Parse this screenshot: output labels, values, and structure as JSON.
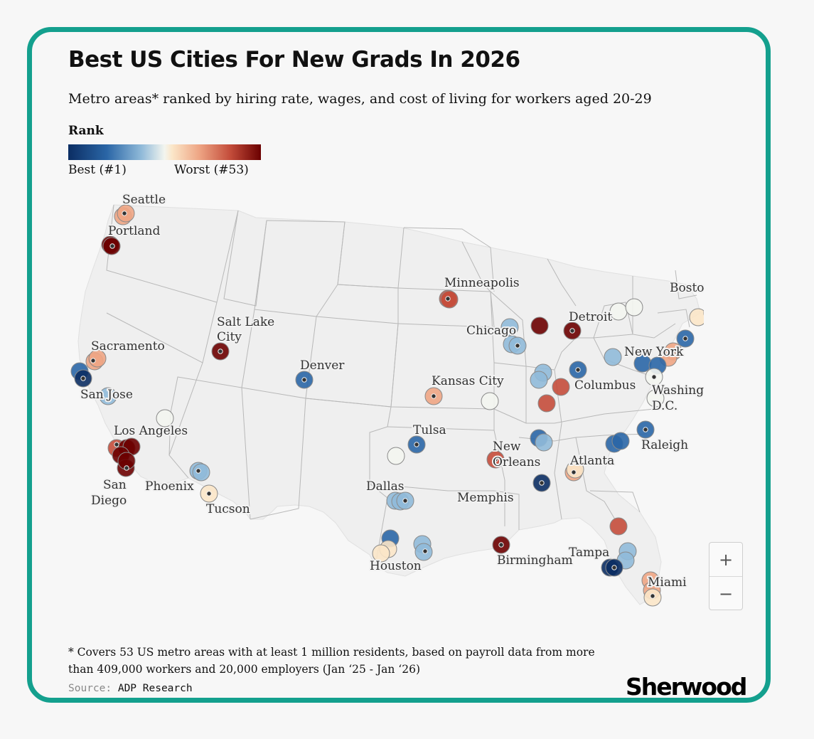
{
  "title": "Best US Cities For New Grads In 2026",
  "subtitle": "Metro areas* ranked by hiring rate, wages, and cost of living for workers aged 20-29",
  "legend": {
    "heading": "Rank",
    "best": "Best (#1)",
    "worst": "Worst (#53)",
    "colors": [
      "#0b2d63",
      "#2a66a6",
      "#90bad9",
      "#f3f5ef",
      "#fbe6c8",
      "#eea584",
      "#c44d3b",
      "#6b0000"
    ]
  },
  "map": {
    "labels": [
      "Seattle",
      "Portland",
      "Sacramento",
      "San Jose",
      "Los Angeles",
      "San Diego",
      "Phoenix",
      "Tucson",
      "Salt Lake City",
      "Denver",
      "Dallas",
      "Houston",
      "Tulsa",
      "Kansas City",
      "Minneapolis",
      "Chicago",
      "Detroit",
      "Columbus",
      "Memphis",
      "New Orleans",
      "Birmingham",
      "Atlanta",
      "Tampa",
      "Miami",
      "Raleigh",
      "Washington D.C.",
      "New York",
      "Boston"
    ],
    "zoom": {
      "in": "+",
      "out": "−"
    }
  },
  "footnote": "* Covers 53 US metro areas with at least 1 million residents, based on payroll data from more than 409,000 workers and 20,000 employers (Jan ‘25 - Jan ‘26)",
  "source": {
    "label": "Source:",
    "value": "ADP Research"
  },
  "logo": "Sherwood"
}
